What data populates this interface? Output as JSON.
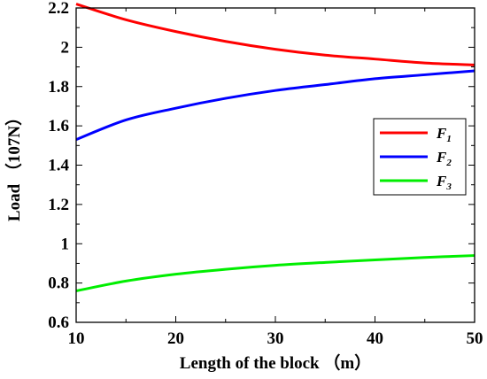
{
  "chart_data": {
    "type": "line",
    "xlabel": "Length of the block （m）",
    "ylabel": "Load （107N）",
    "xlim": [
      10,
      50
    ],
    "ylim": [
      0.6,
      2.2
    ],
    "xticks": [
      10,
      20,
      30,
      40,
      50
    ],
    "yticks": [
      0.6,
      0.8,
      1,
      1.2,
      1.4,
      1.6,
      1.8,
      2,
      2.2
    ],
    "grid": false,
    "legend_position": "right-middle",
    "series": [
      {
        "name": "F",
        "subscript": "1",
        "color": "#ff0000",
        "x": [
          10,
          15,
          20,
          25,
          30,
          35,
          40,
          45,
          50
        ],
        "y": [
          2.22,
          2.14,
          2.08,
          2.03,
          1.99,
          1.96,
          1.94,
          1.92,
          1.91
        ]
      },
      {
        "name": "F",
        "subscript": "2",
        "color": "#0000ff",
        "x": [
          10,
          15,
          20,
          25,
          30,
          35,
          40,
          45,
          50
        ],
        "y": [
          1.53,
          1.63,
          1.69,
          1.74,
          1.78,
          1.81,
          1.84,
          1.86,
          1.88
        ]
      },
      {
        "name": "F",
        "subscript": "3",
        "color": "#00ee00",
        "x": [
          10,
          15,
          20,
          25,
          30,
          35,
          40,
          45,
          50
        ],
        "y": [
          0.76,
          0.81,
          0.845,
          0.87,
          0.89,
          0.905,
          0.918,
          0.93,
          0.94
        ]
      }
    ]
  }
}
